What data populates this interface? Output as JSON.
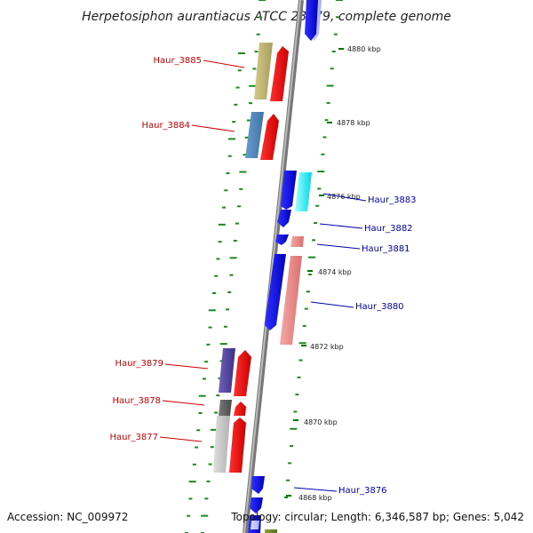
{
  "title": "Herpetosiphon aurantiacus ATCC 23779, complete genome",
  "footer": {
    "accession": "Accession: NC_009972",
    "topology": "Topology: circular; Length: 6,346,587 bp; Genes: 5,042"
  },
  "kbp_ticks": [
    "4880 kbp",
    "4878 kbp",
    "4876 kbp",
    "4874 kbp",
    "4872 kbp",
    "4870 kbp",
    "4868 kbp"
  ],
  "gene_labels": [
    {
      "name": "Haur_3885",
      "color": "#cc0000"
    },
    {
      "name": "Haur_3884",
      "color": "#cc0000"
    },
    {
      "name": "Haur_3883",
      "color": "#0000aa"
    },
    {
      "name": "Haur_3882",
      "color": "#0000aa"
    },
    {
      "name": "Haur_3881",
      "color": "#0000aa"
    },
    {
      "name": "Haur_3880",
      "color": "#0000aa"
    },
    {
      "name": "Haur_3879",
      "color": "#cc0000"
    },
    {
      "name": "Haur_3878",
      "color": "#cc0000"
    },
    {
      "name": "Haur_3877",
      "color": "#cc0000"
    },
    {
      "name": "Haur_3876",
      "color": "#0000aa"
    }
  ]
}
